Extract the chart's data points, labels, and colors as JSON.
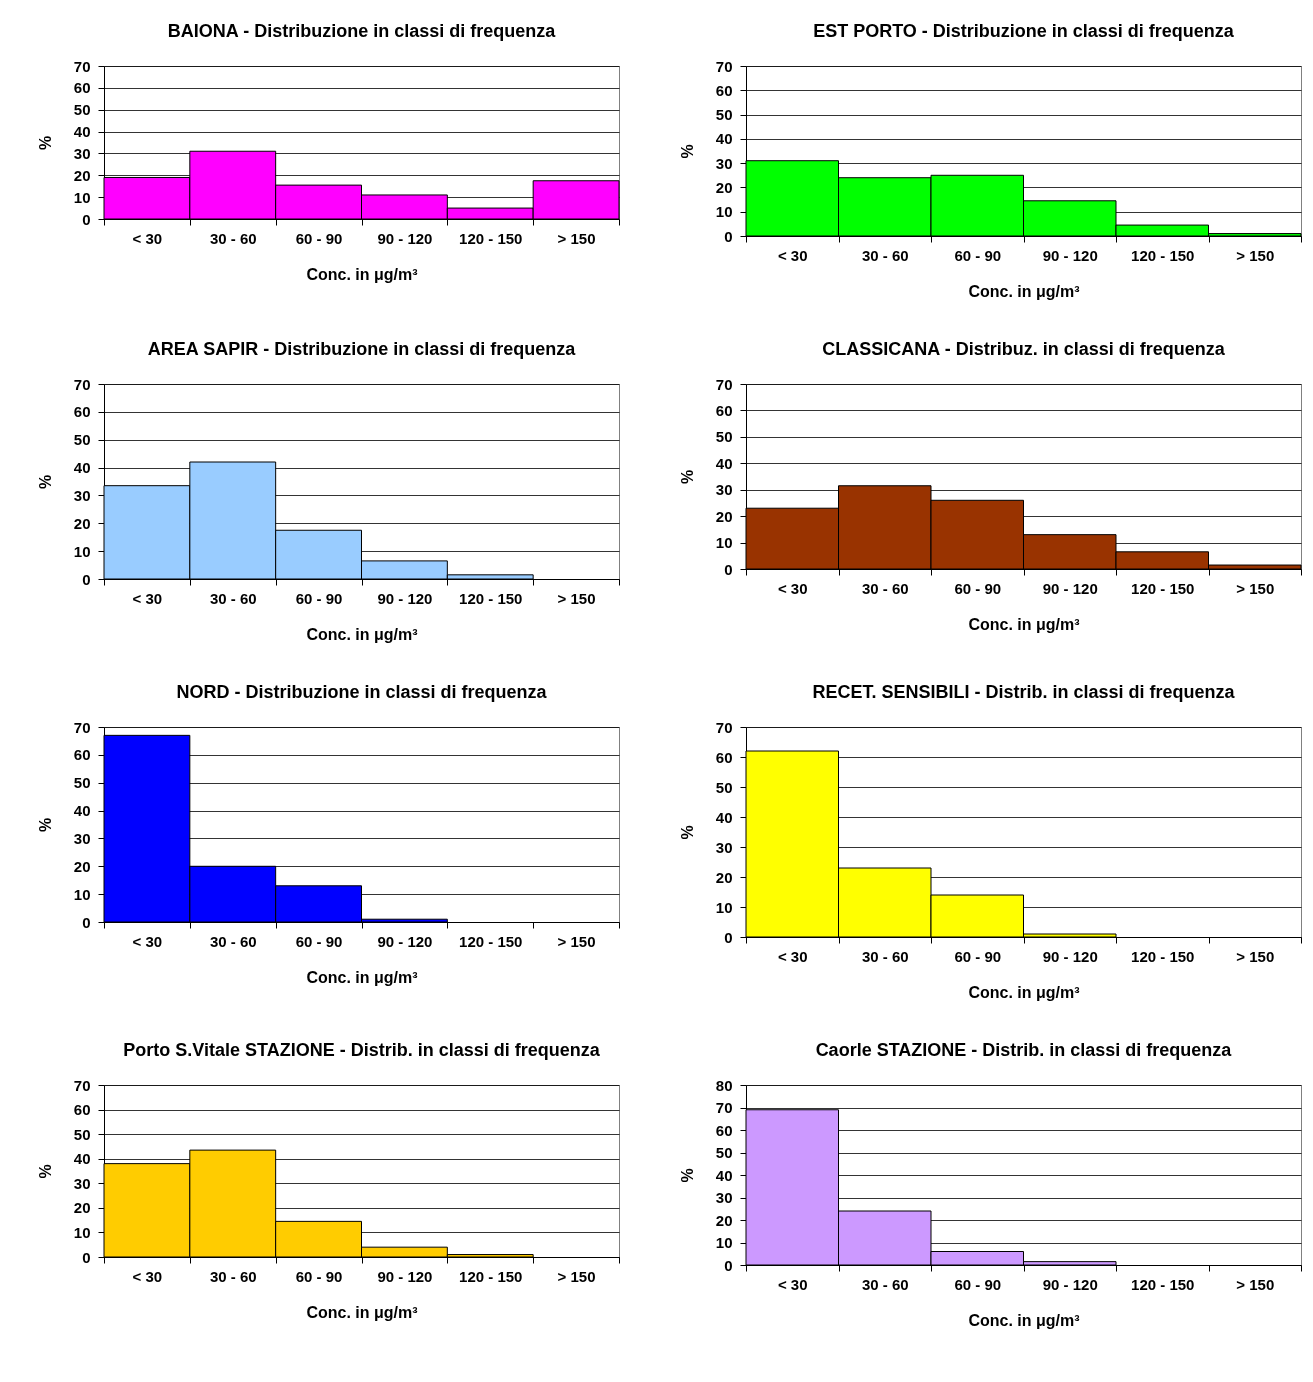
{
  "chart_data": [
    {
      "type": "bar",
      "title": "BAIONA - Distribuzione in classi di frequenza",
      "xlabel": "Conc. in μg/m³",
      "ylabel": "%",
      "categories": [
        "< 30",
        "30 - 60",
        "60 - 90",
        "90 - 120",
        "120 - 150",
        "> 150"
      ],
      "values": [
        19,
        31,
        15.5,
        11,
        5,
        17.5
      ],
      "color": "#ff00ff",
      "ylim": [
        0,
        70
      ],
      "yticks": [
        0,
        10,
        20,
        30,
        40,
        50,
        60,
        70
      ],
      "grid": "y"
    },
    {
      "type": "bar",
      "title": "EST PORTO - Distribuzione in classi di frequenza",
      "xlabel": "Conc. in μg/m³",
      "ylabel": "%",
      "categories": [
        "< 30",
        "30 - 60",
        "60 - 90",
        "90 - 120",
        "120 - 150",
        "> 150"
      ],
      "values": [
        31,
        24,
        25,
        14.5,
        4.5,
        1
      ],
      "color": "#00ff00",
      "ylim": [
        0,
        70
      ],
      "yticks": [
        0,
        10,
        20,
        30,
        40,
        50,
        60,
        70
      ],
      "grid": "y"
    },
    {
      "type": "bar",
      "title": "AREA SAPIR - Distribuzione in classi di frequenza",
      "xlabel": "Conc. in μg/m³",
      "ylabel": "%",
      "categories": [
        "< 30",
        "30 - 60",
        "60 - 90",
        "90 - 120",
        "120 - 150",
        "> 150"
      ],
      "values": [
        33.5,
        42,
        17.5,
        6.5,
        1.5,
        null
      ],
      "color": "#99ccff",
      "ylim": [
        0,
        70
      ],
      "yticks": [
        0,
        10,
        20,
        30,
        40,
        50,
        60,
        70
      ],
      "grid": "y"
    },
    {
      "type": "bar",
      "title": "CLASSICANA - Distribuz. in classi di frequenza",
      "xlabel": "Conc. in μg/m³",
      "ylabel": "%",
      "categories": [
        "< 30",
        "30 - 60",
        "60 - 90",
        "90 - 120",
        "120 - 150",
        "> 150"
      ],
      "values": [
        23,
        31.5,
        26,
        13,
        6.5,
        1.5
      ],
      "color": "#993300",
      "ylim": [
        0,
        70
      ],
      "yticks": [
        0,
        10,
        20,
        30,
        40,
        50,
        60,
        70
      ],
      "grid": "y"
    },
    {
      "type": "bar",
      "title": "NORD - Distribuzione in classi di frequenza",
      "xlabel": "Conc. in μg/m³",
      "ylabel": "%",
      "categories": [
        "< 30",
        "30 - 60",
        "60 - 90",
        "90 - 120",
        "120 - 150",
        "> 150"
      ],
      "values": [
        67,
        20,
        13,
        1,
        null,
        null
      ],
      "color": "#0000ff",
      "ylim": [
        0,
        70
      ],
      "yticks": [
        0,
        10,
        20,
        30,
        40,
        50,
        60,
        70
      ],
      "grid": "y"
    },
    {
      "type": "bar",
      "title": "RECET. SENSIBILI - Distrib. in classi di frequenza",
      "xlabel": "Conc. in μg/m³",
      "ylabel": "%",
      "categories": [
        "< 30",
        "30 - 60",
        "60 - 90",
        "90 - 120",
        "120 - 150",
        "> 150"
      ],
      "values": [
        62,
        23,
        14,
        1,
        null,
        null
      ],
      "color": "#ffff00",
      "ylim": [
        0,
        70
      ],
      "yticks": [
        0,
        10,
        20,
        30,
        40,
        50,
        60,
        70
      ],
      "grid": "y"
    },
    {
      "type": "bar",
      "title": "Porto S.Vitale STAZIONE - Distrib. in classi di frequenza",
      "xlabel": "Conc. in μg/m³",
      "ylabel": "%",
      "categories": [
        "< 30",
        "30 - 60",
        "60 - 90",
        "90 - 120",
        "120 - 150",
        "> 150"
      ],
      "values": [
        38,
        43.5,
        14.5,
        4,
        1,
        null
      ],
      "color": "#ffcc00",
      "ylim": [
        0,
        70
      ],
      "yticks": [
        0,
        10,
        20,
        30,
        40,
        50,
        60,
        70
      ],
      "grid": "y"
    },
    {
      "type": "bar",
      "title": "Caorle STAZIONE - Distrib. in classi di frequenza",
      "xlabel": "Conc. in μg/m³",
      "ylabel": "%",
      "categories": [
        "< 30",
        "30 - 60",
        "60 - 90",
        "90 - 120",
        "120 - 150",
        "> 150"
      ],
      "values": [
        69,
        24,
        6,
        1.5,
        null,
        null
      ],
      "color": "#cc99ff",
      "ylim": [
        0,
        80
      ],
      "yticks": [
        0,
        10,
        20,
        30,
        40,
        50,
        60,
        70,
        80
      ],
      "grid": "y"
    }
  ]
}
